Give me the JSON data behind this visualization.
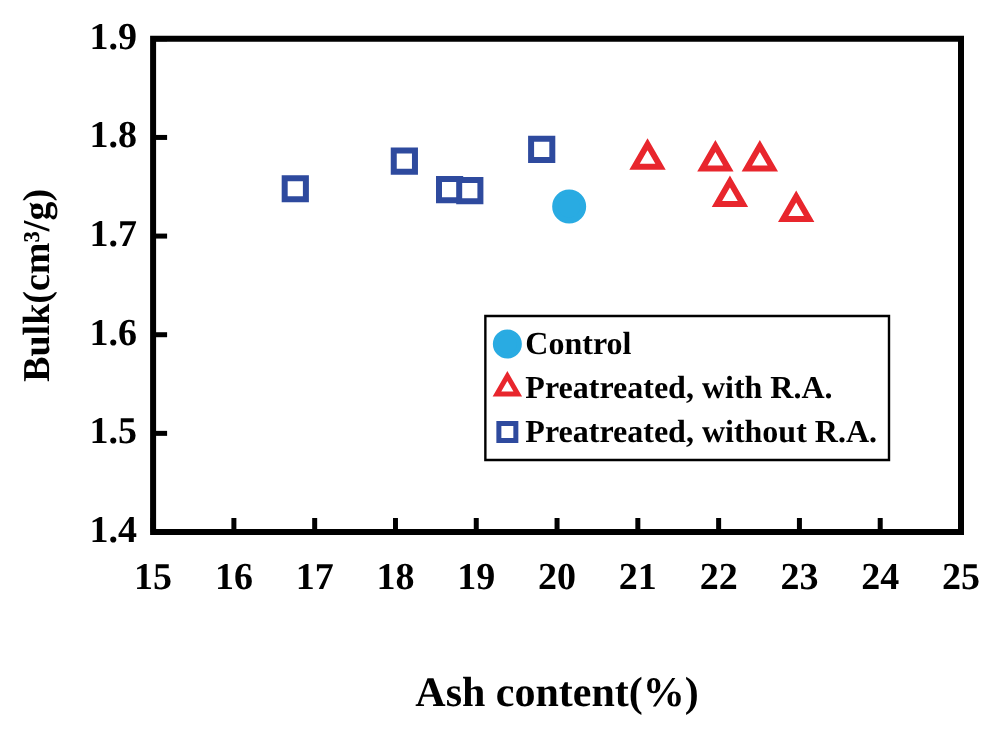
{
  "chart_data": {
    "type": "scatter",
    "xlabel": "Ash content(%)",
    "ylabel": "Bulk(cm³/g)",
    "xlim": [
      15,
      25
    ],
    "xticks": [
      15,
      16,
      17,
      18,
      19,
      20,
      21,
      22,
      23,
      24,
      25
    ],
    "ylim": [
      1.4,
      1.9
    ],
    "yticks": [
      1.4,
      1.5,
      1.6,
      1.7,
      1.8,
      1.9
    ],
    "grid": false,
    "legend": "bottom right",
    "series": [
      {
        "name": "Control",
        "color": "#29abe2",
        "marker": "circle",
        "x": [
          20.15
        ],
        "values": [
          1.73
        ]
      },
      {
        "name": "Preatreated, with R.A.",
        "color": "#e8262d",
        "marker": "triangle",
        "x": [
          21.12,
          21.96,
          22.51,
          22.14,
          22.96
        ],
        "values": [
          1.778,
          1.776,
          1.776,
          1.74,
          1.725
        ]
      },
      {
        "name": "Preatreated, without R.A.",
        "color": "#2e4a9e",
        "marker": "square",
        "x": [
          16.76,
          18.11,
          18.67,
          18.92,
          19.81
        ],
        "values": [
          1.748,
          1.776,
          1.747,
          1.746,
          1.788
        ]
      }
    ]
  }
}
